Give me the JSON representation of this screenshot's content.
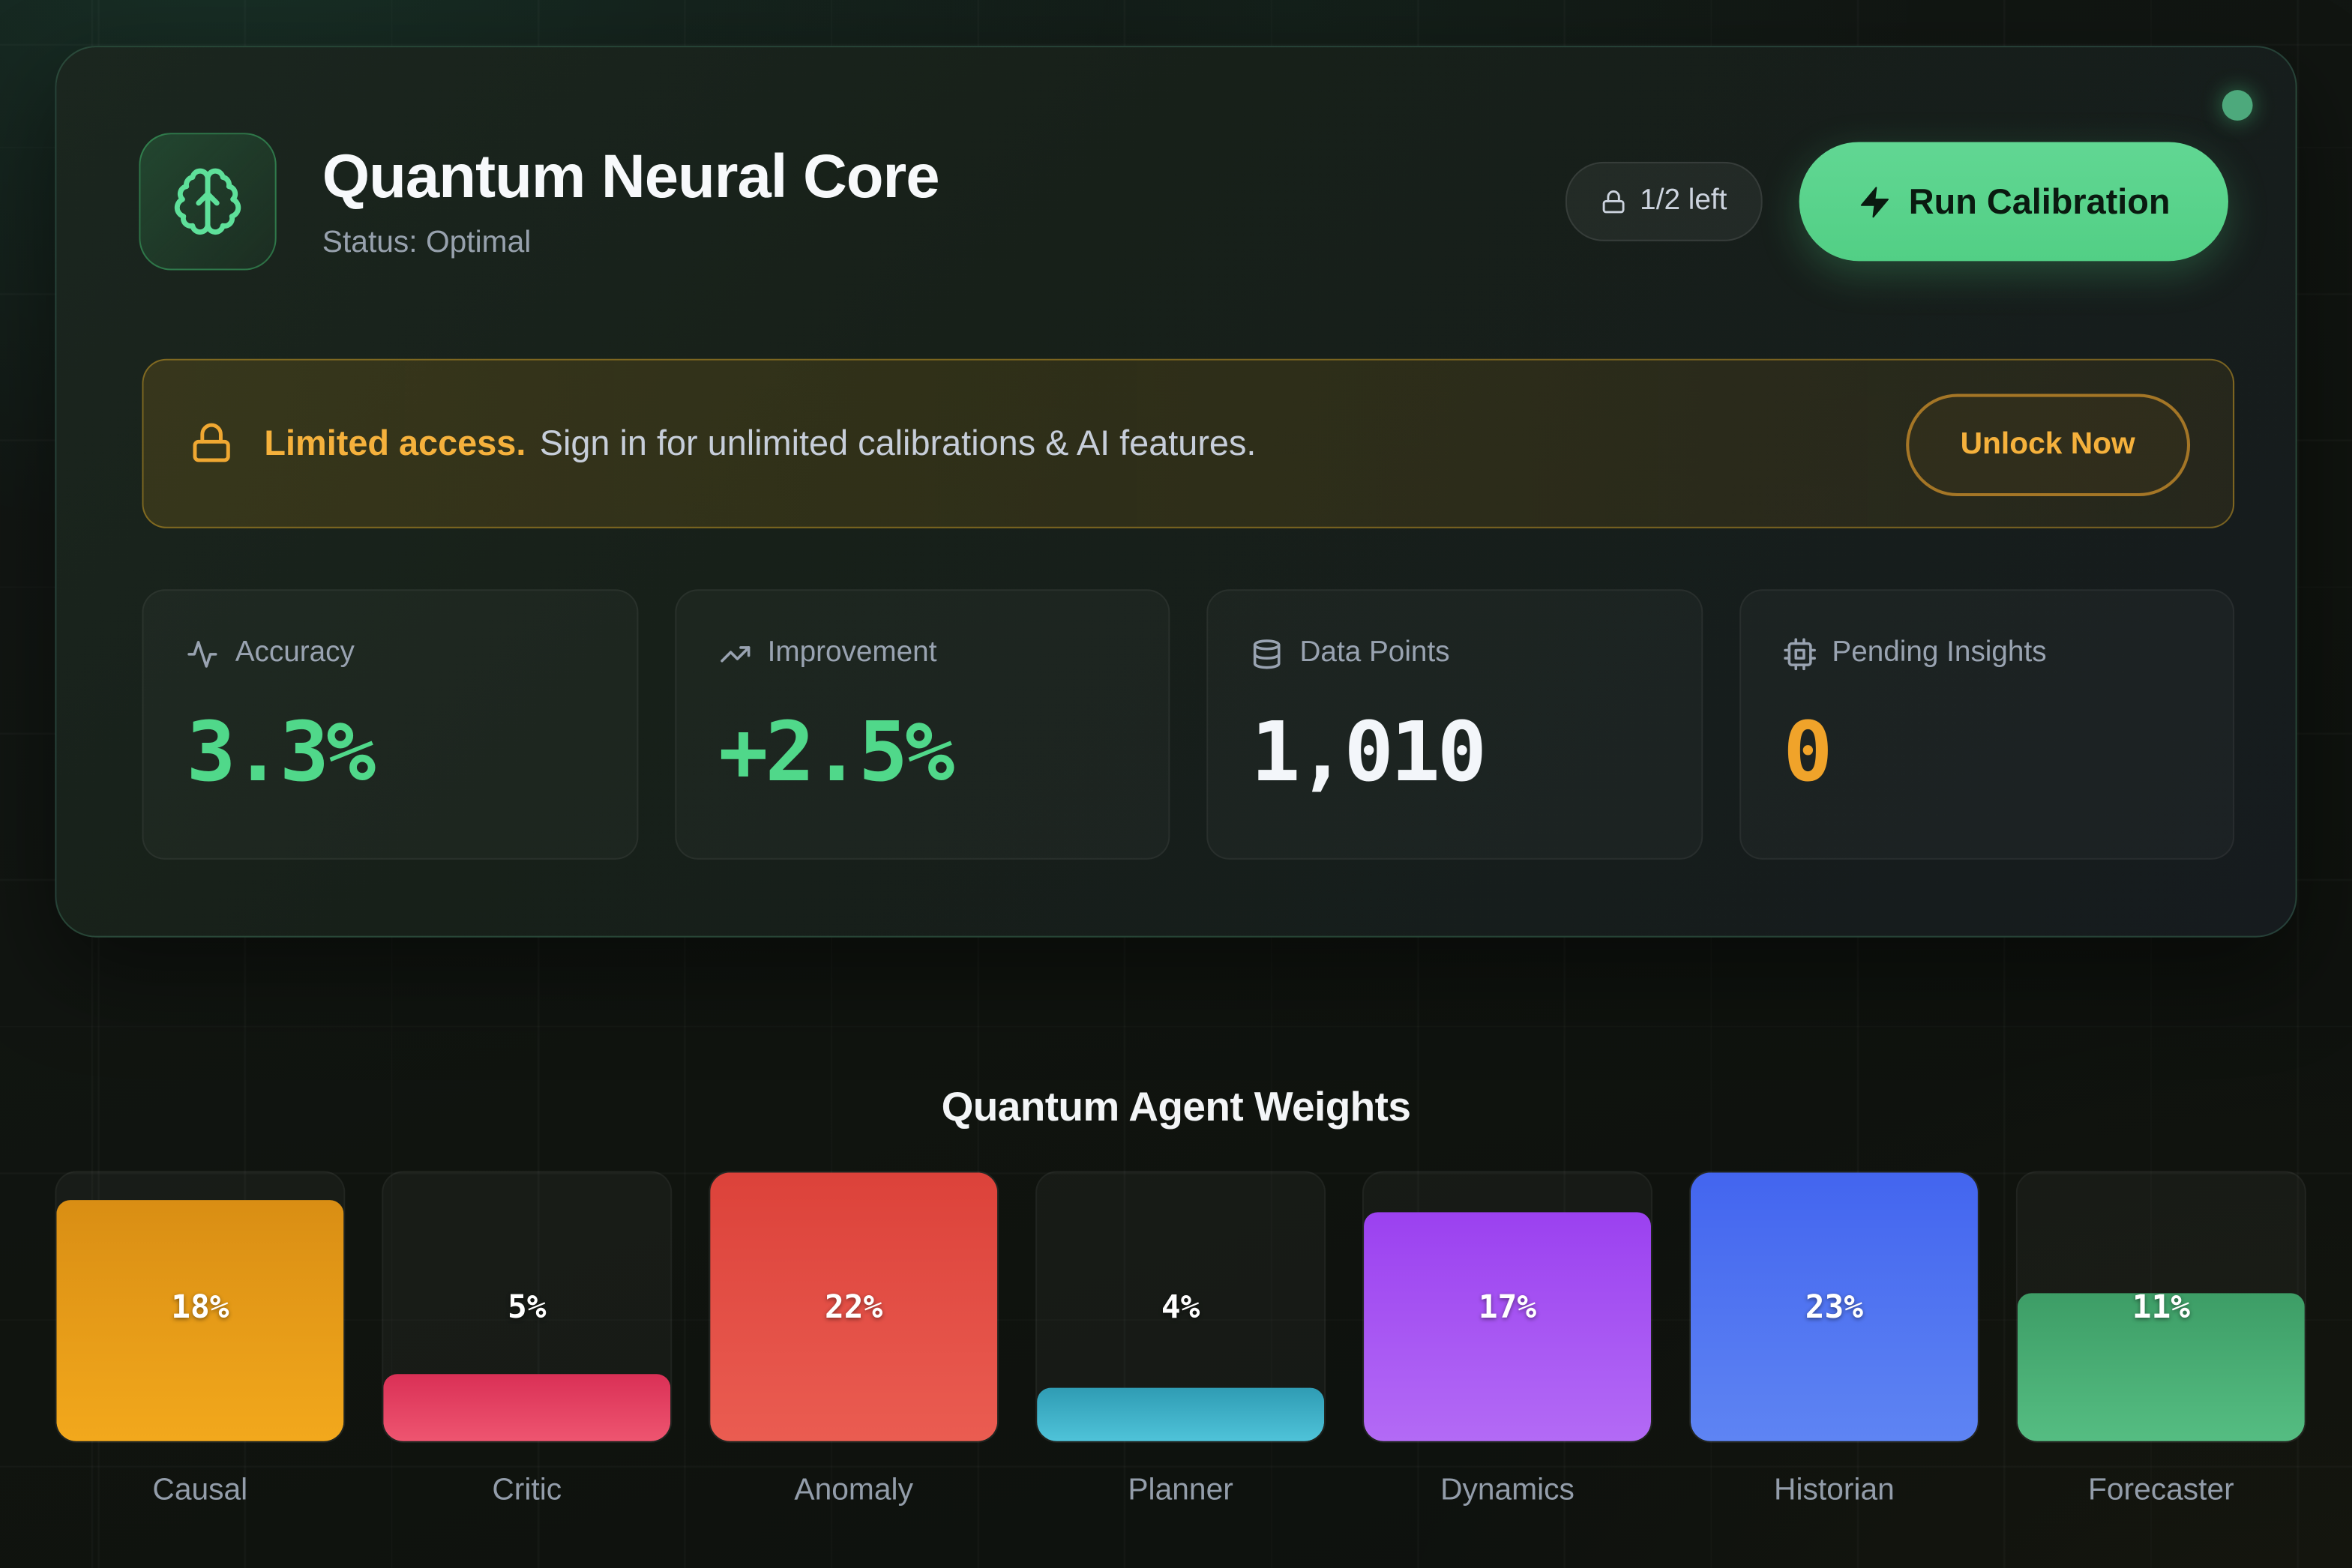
{
  "header": {
    "title": "Quantum Neural Core",
    "status": "Status: Optimal",
    "icon": "brain-icon",
    "accent_green": "#4ade80",
    "status_dot_color": "#4da97c",
    "credits_badge": "1/2 left",
    "credits_badge_icon": "lock-icon",
    "run_button": "Run Calibration",
    "run_button_icon": "zap-icon",
    "run_button_bg": "#5ad289"
  },
  "banner": {
    "icon": "lock-icon",
    "highlight": "Limited access.",
    "message": "Sign in for unlimited calibrations & AI features.",
    "button": "Unlock Now",
    "accent_color": "#f5b13c"
  },
  "stats": [
    {
      "label": "Accuracy",
      "value": "3.3%",
      "color": "#50d88a",
      "icon": "activity-icon"
    },
    {
      "label": "Improvement",
      "value": "+2.5%",
      "color": "#50d88a",
      "icon": "trending-up-icon"
    },
    {
      "label": "Data Points",
      "value": "1,010",
      "color": "#f3f6fa",
      "icon": "database-icon"
    },
    {
      "label": "Pending Insights",
      "value": "0",
      "color": "#f0a32a",
      "icon": "cpu-icon"
    }
  ],
  "chart_data": {
    "type": "bar",
    "title": "Quantum Agent Weights",
    "categories": [
      "Causal",
      "Critic",
      "Anomaly",
      "Planner",
      "Dynamics",
      "Historian",
      "Forecaster"
    ],
    "values": [
      18,
      5,
      22,
      4,
      17,
      23,
      11
    ],
    "unit": "%",
    "value_labels": [
      "18%",
      "5%",
      "22%",
      "4%",
      "17%",
      "23%",
      "11%"
    ],
    "ylim": [
      0,
      20
    ],
    "scale_note": "bar fill height = value/20 of track height, capped at 100%",
    "grid": false,
    "legend": false,
    "track_color": "rgba(255,255,255,0.035)",
    "bar_colors": [
      {
        "top": "#d98e14",
        "bottom": "#f2a81c"
      },
      {
        "top": "#da3056",
        "bottom": "#ee5570"
      },
      {
        "top": "#dc423a",
        "bottom": "#ea5c51"
      },
      {
        "top": "#2f9cb4",
        "bottom": "#4fc3d9"
      },
      {
        "top": "#9b41f0",
        "bottom": "#b36af5"
      },
      {
        "top": "#4365ef",
        "bottom": "#5e84f3"
      },
      {
        "top": "#3d9d66",
        "bottom": "#55bd82"
      }
    ]
  }
}
